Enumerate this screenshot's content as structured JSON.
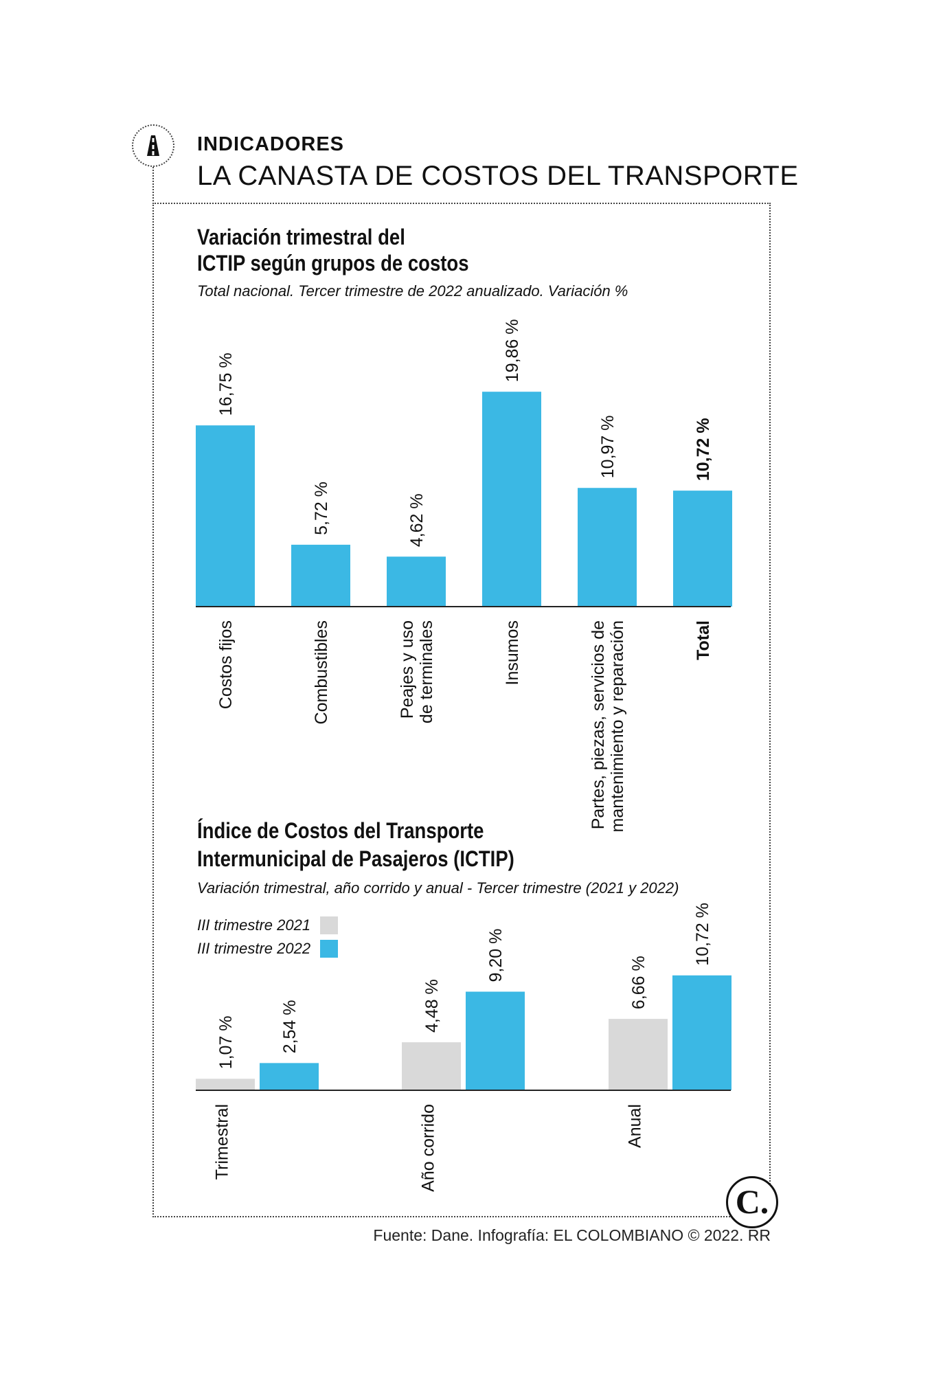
{
  "header": {
    "kicker": "INDICADORES",
    "headline": "LA CANASTA DE COSTOS DEL TRANSPORTE"
  },
  "section1": {
    "title_line1": "Variación trimestral del",
    "title_line2": "ICTIP según grupos de costos",
    "subtitle": "Total nacional. Tercer trimestre de 2022 anualizado. Variación %"
  },
  "section2": {
    "title_line1": "Índice de Costos del Transporte",
    "title_line2": "Intermunicipal de Pasajeros (ICTIP)",
    "subtitle": "Variación trimestral, año corrido y anual - Tercer trimestre (2021 y 2022)"
  },
  "legend": {
    "item1": "III trimestre 2021",
    "item2": "III trimestre 2022"
  },
  "footer": "Fuente: Dane. Infografía: EL COLOMBIANO © 2022. RR",
  "brand_logo": "C.",
  "colors": {
    "blue": "#3bb8e4",
    "gray": "#d9d9d9",
    "text": "#111111"
  },
  "chart_data": [
    {
      "type": "bar",
      "categories": [
        [
          "Costos fijos"
        ],
        [
          "Combustibles"
        ],
        [
          "Peajes y uso",
          "de terminales"
        ],
        [
          "Insumos"
        ],
        [
          "Partes, piezas, servicios de",
          "mantenimiento y reparación"
        ],
        [
          "Total"
        ]
      ],
      "values": [
        16.75,
        5.72,
        4.62,
        19.86,
        10.97,
        10.72
      ],
      "labels": [
        "16,75 %",
        "5,72 %",
        "4,62 %",
        "19,86 %",
        "10,97 %",
        "10,72 %"
      ],
      "bold_index": 5
    },
    {
      "type": "bar",
      "categories": [
        "Trimestral",
        "Año corrido",
        "Anual"
      ],
      "series": [
        {
          "name": "III trimestre 2021",
          "values": [
            1.07,
            4.48,
            6.66
          ],
          "labels": [
            "1,07 %",
            "4,48 %",
            "6,66 %"
          ]
        },
        {
          "name": "III trimestre 2022",
          "values": [
            2.54,
            9.2,
            10.72
          ],
          "labels": [
            "2,54 %",
            "9,20 %",
            "10,72 %"
          ]
        }
      ]
    }
  ]
}
